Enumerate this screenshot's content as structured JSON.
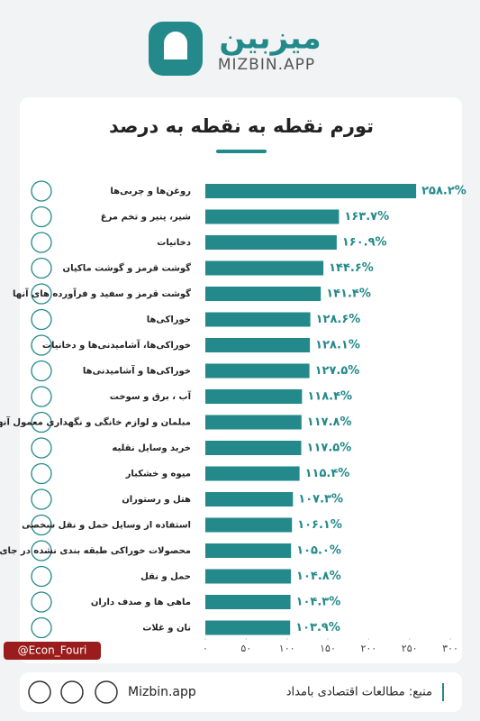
{
  "header": {
    "brand": "میزبین",
    "site": "MIZBIN.APP"
  },
  "chart_data": {
    "type": "hbar",
    "title": "تورم نقطه به نقطه به درصد",
    "categories": [
      "روغن‌ها و چربی‌ها",
      "شیر، پنیر و تخم مرغ",
      "دخانیات",
      "گوشت قرمز و گوشت ماکیان",
      "گوشت قرمز و سفید و فرآورده های آنها",
      "خوراکی‌ها",
      "خوراکی‌ها، آشامیدنی‌ها و دخانیات",
      "خوراکی‌ها و آشامیدنی‌ها",
      "آب ، برق و سوخت",
      "مبلمان و لوازم خانگی و نگهداری معمول آنها",
      "خرید وسایل نقلیه",
      "میوه و خشکبار",
      "هتل و رستوران",
      "استفاده از وسایل حمل و نقل شخصی",
      "محصولات خوراکی طبقه بندی نشده در جای دیگر",
      "حمل و نقل",
      "ماهی ها و صدف داران",
      "نان و غلات"
    ],
    "values": [
      258.2,
      163.7,
      160.9,
      144.6,
      141.4,
      128.6,
      128.1,
      127.5,
      118.4,
      117.8,
      117.5,
      115.4,
      107.3,
      106.1,
      105.0,
      104.8,
      104.3,
      103.9
    ],
    "value_labels": [
      "۲۵۸.۲%",
      "۱۶۳.۷%",
      "۱۶۰.۹%",
      "۱۴۴.۶%",
      "۱۴۱.۴%",
      "۱۲۸.۶%",
      "۱۲۸.۱%",
      "۱۲۷.۵%",
      "۱۱۸.۴%",
      "۱۱۷.۸%",
      "۱۱۷.۵%",
      "۱۱۵.۴%",
      "۱۰۷.۳%",
      "۱۰۶.۱%",
      "۱۰۵.۰%",
      "۱۰۴.۸%",
      "۱۰۴.۳%",
      "۱۰۳.۹%"
    ],
    "color": "#23898a",
    "xlim": [
      0,
      300
    ],
    "xticks": [
      {
        "value": 0,
        "label": "۰"
      },
      {
        "value": 50,
        "label": "۵۰"
      },
      {
        "value": 100,
        "label": "۱۰۰"
      },
      {
        "value": 150,
        "label": "۱۵۰"
      },
      {
        "value": 200,
        "label": "۲۰۰"
      },
      {
        "value": 250,
        "label": "۲۵۰"
      },
      {
        "value": 300,
        "label": "۳۰۰"
      }
    ]
  },
  "footer": {
    "handle": "@Econ_Fouri",
    "site": "Mizbin.app",
    "source": "منبع: مطالعات اقتصادی بامداد"
  }
}
